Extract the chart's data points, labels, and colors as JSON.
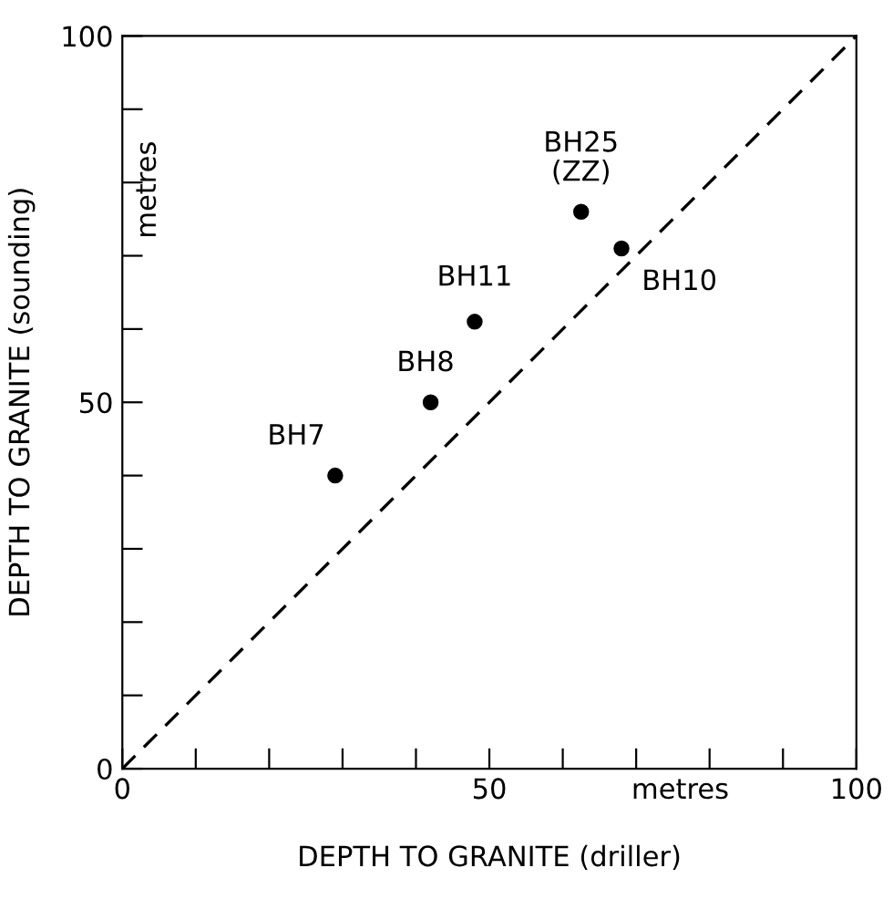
{
  "chart_data": {
    "type": "scatter",
    "xlabel": "DEPTH TO GRANITE (driller)",
    "ylabel": "DEPTH TO GRANITE (sounding)",
    "xlim": [
      0,
      100
    ],
    "ylim": [
      0,
      100
    ],
    "xticks": [
      0,
      {
        "value": 10,
        "label": null
      },
      {
        "value": 20,
        "label": null
      },
      {
        "value": 30,
        "label": null
      },
      {
        "value": 40,
        "label": null
      },
      50,
      {
        "value": 60,
        "label": null
      },
      {
        "value": 70,
        "label": null
      },
      {
        "value": 80,
        "label": null
      },
      {
        "value": 90,
        "label": null
      },
      100
    ],
    "yticks": [
      0,
      {
        "value": 10,
        "label": null
      },
      {
        "value": 20,
        "label": null
      },
      {
        "value": 30,
        "label": null
      },
      {
        "value": 40,
        "label": null
      },
      50,
      {
        "value": 60,
        "label": null
      },
      {
        "value": 70,
        "label": null
      },
      {
        "value": 80,
        "label": null
      },
      {
        "value": 90,
        "label": null
      },
      100
    ],
    "grid": false,
    "series": [
      {
        "color": "#000000",
        "marker": "circle",
        "x": [
          29,
          42,
          48,
          62.5,
          68
        ],
        "values": [
          40,
          50,
          61,
          76,
          71
        ]
      },
      {
        "type": "line",
        "color": "#000000",
        "line_style": "dashed",
        "marker": "none",
        "x": [
          0,
          100
        ],
        "values": [
          0,
          100
        ]
      }
    ],
    "annotations": [
      {
        "text": "BH7",
        "x": 29,
        "y": 40
      },
      {
        "text": "BH8",
        "x": 42,
        "y": 50
      },
      {
        "text": "BH11",
        "x": 48,
        "y": 61
      },
      {
        "text": "BH25\n(ZZ)",
        "x": 62.5,
        "y": 76
      },
      {
        "text": "BH10",
        "x": 68,
        "y": 71
      },
      "metres",
      "metres"
    ]
  }
}
